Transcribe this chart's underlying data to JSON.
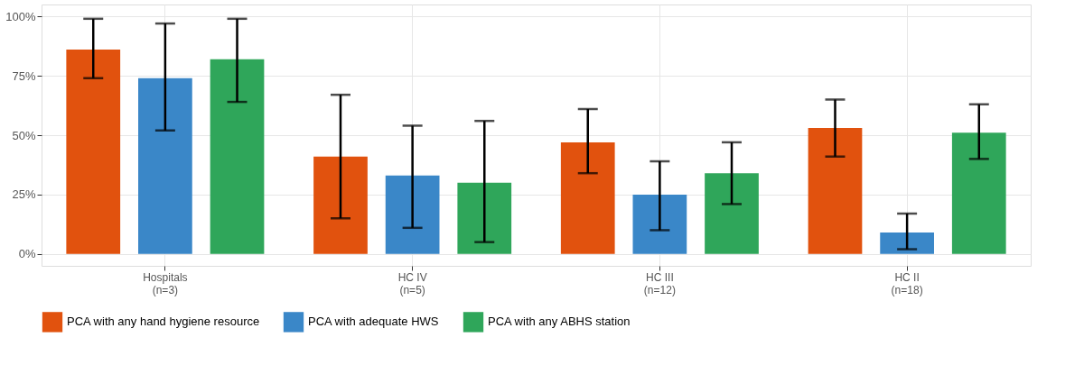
{
  "chart_data": {
    "type": "bar",
    "categories": [
      "Hospitals\n(n=3)",
      "HC IV\n(n=5)",
      "HC III\n(n=12)",
      "HC II\n(n=18)"
    ],
    "series": [
      {
        "name": "PCA with any hand hygiene resource",
        "color": "#e1520e",
        "values": [
          86,
          41,
          47,
          53
        ],
        "errors": [
          [
            74,
            99
          ],
          [
            15,
            67
          ],
          [
            34,
            61
          ],
          [
            41,
            65
          ]
        ]
      },
      {
        "name": "PCA with adequate HWS",
        "color": "#3a87c8",
        "values": [
          74,
          33,
          25,
          9
        ],
        "errors": [
          [
            52,
            97
          ],
          [
            11,
            54
          ],
          [
            10,
            39
          ],
          [
            2,
            17
          ]
        ]
      },
      {
        "name": "PCA with any ABHS station",
        "color": "#2fa65a",
        "values": [
          82,
          30,
          34,
          51
        ],
        "errors": [
          [
            64,
            99
          ],
          [
            5,
            56
          ],
          [
            21,
            47
          ],
          [
            40,
            63
          ]
        ]
      }
    ],
    "ylim": [
      -5,
      105
    ],
    "yticks": [
      {
        "value": 0,
        "label": "0%"
      },
      {
        "value": 25,
        "label": "25%"
      },
      {
        "value": 50,
        "label": "50%"
      },
      {
        "value": 75,
        "label": "75%"
      },
      {
        "value": 100,
        "label": "100%"
      }
    ],
    "grid": true,
    "legend": "bottom"
  }
}
